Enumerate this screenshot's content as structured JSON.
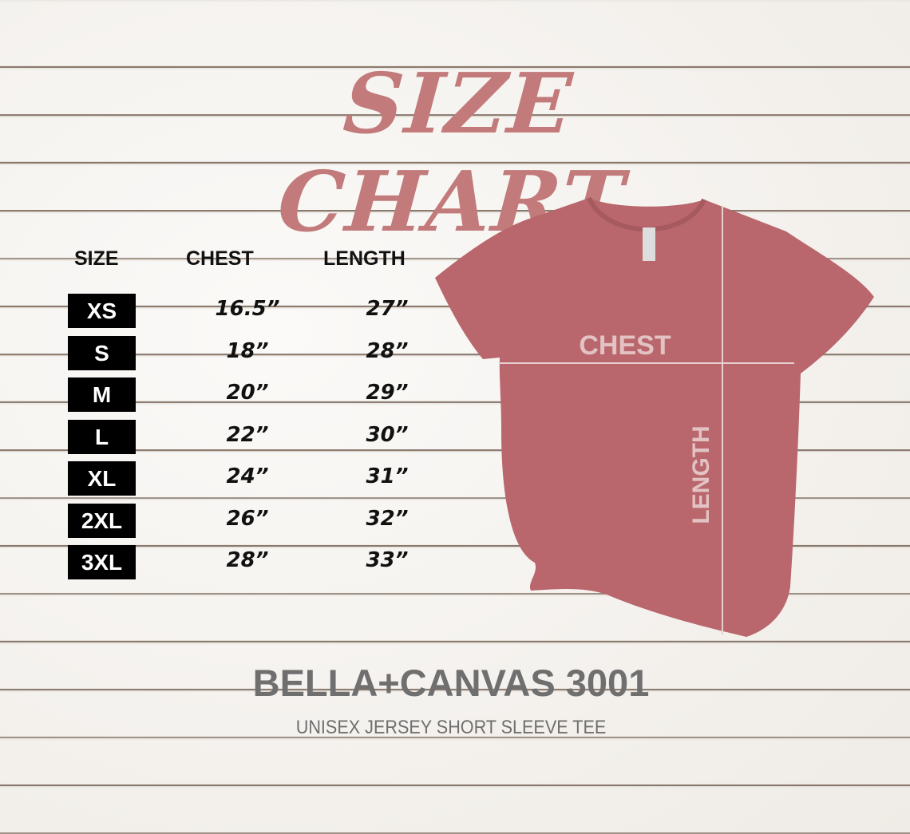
{
  "title": "SIZE CHART",
  "headers": {
    "size": "SIZE",
    "chest": "CHEST",
    "length": "LENGTH"
  },
  "rows": [
    {
      "size": "XS",
      "chest": "16.5”",
      "length": "27”"
    },
    {
      "size": "S",
      "chest": "18”",
      "length": "28”"
    },
    {
      "size": "M",
      "chest": "20”",
      "length": "29”"
    },
    {
      "size": "L",
      "chest": "22”",
      "length": "30”"
    },
    {
      "size": "XL",
      "chest": "24”",
      "length": "31”"
    },
    {
      "size": "2XL",
      "chest": "26”",
      "length": "32”"
    },
    {
      "size": "3XL",
      "chest": "28”",
      "length": "33”"
    }
  ],
  "diagram": {
    "chest_label": "CHEST",
    "length_label": "LENGTH",
    "shirt_color": "#b9676c"
  },
  "brand": "BELLA+CANVAS 3001",
  "subtitle": "UNISEX JERSEY SHORT SLEEVE TEE",
  "colors": {
    "title": "#c27a7a",
    "brand": "#6f6f6f",
    "badge": "#000000"
  }
}
